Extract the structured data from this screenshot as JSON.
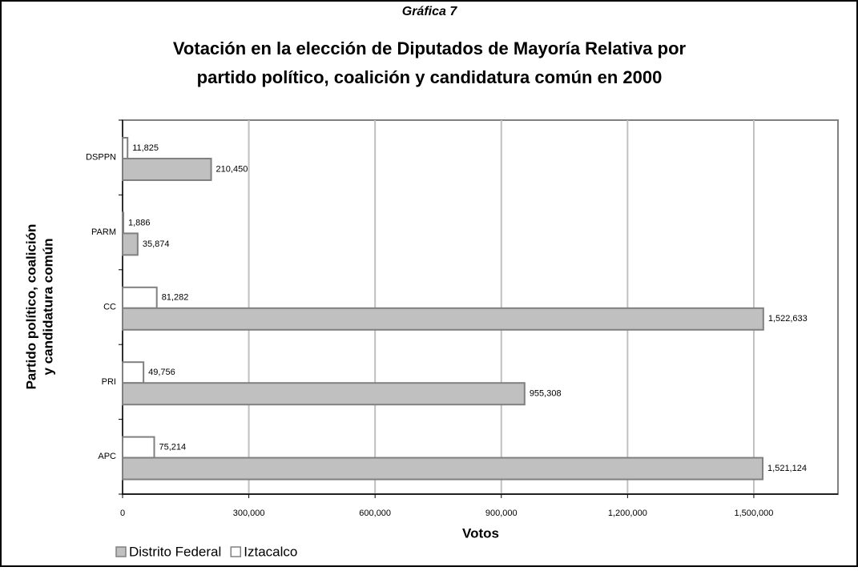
{
  "chart_data": {
    "type": "hbar",
    "subtitle": "Gráfica 7",
    "title": [
      "Votación en la elección de Diputados de Mayoría Relativa por",
      "partido político, coalición y candidatura común en 2000"
    ],
    "y_label": [
      "Partido político, coalición",
      "y candidatura común"
    ],
    "x_label": "Votos",
    "categories": [
      "DSPPN",
      "PARM",
      "CC",
      "PRI",
      "APC"
    ],
    "series": [
      {
        "name": "Distrito Federal",
        "color": "#c0c0c0",
        "values": [
          210450,
          35874,
          1522633,
          955308,
          1521124
        ],
        "value_labels": [
          "210,450",
          "35,874",
          "1,522,633",
          "955,308",
          "1,521,124"
        ]
      },
      {
        "name": "Iztacalco",
        "color": "#ffffff",
        "values": [
          11825,
          1886,
          81282,
          49756,
          75214
        ],
        "value_labels": [
          "11,825",
          "1,886",
          "81,282",
          "49,756",
          "75,214"
        ]
      }
    ],
    "xlim": [
      0,
      1700000
    ],
    "xticks": [
      0,
      {
        "value": 300000,
        "label": "300,000"
      },
      {
        "value": 600000,
        "label": "600,000"
      },
      {
        "value": 900000,
        "label": "900,000"
      },
      {
        "value": 1200000,
        "label": "1,200,000"
      },
      {
        "value": 1500000,
        "label": "1,500,000"
      }
    ],
    "grid": true,
    "legend": "bottom-left"
  }
}
